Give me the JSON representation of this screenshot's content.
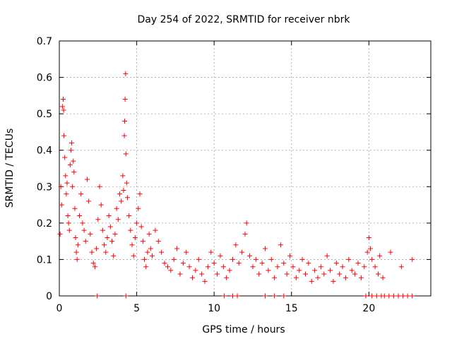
{
  "chart_data": {
    "type": "scatter",
    "title": "Day 254 of 2022, SRMTID for receiver nbrk",
    "xlabel": "GPS time / hours",
    "ylabel": "SRMTID / TECUs",
    "xlim": [
      0,
      24
    ],
    "ylim": [
      0,
      0.7
    ],
    "x_ticks": [
      0,
      5,
      10,
      15,
      20
    ],
    "y_ticks": [
      0,
      0.1,
      0.2,
      0.3,
      0.4,
      0.5,
      0.6,
      0.7
    ],
    "grid": true,
    "marker": "+",
    "color": "#ff0000",
    "series": [
      {
        "name": "SRMTID",
        "points": [
          [
            0.05,
            0.17
          ],
          [
            0.1,
            0.3
          ],
          [
            0.15,
            0.25
          ],
          [
            0.2,
            0.52
          ],
          [
            0.25,
            0.54
          ],
          [
            0.28,
            0.51
          ],
          [
            0.3,
            0.44
          ],
          [
            0.35,
            0.38
          ],
          [
            0.4,
            0.33
          ],
          [
            0.45,
            0.28
          ],
          [
            0.5,
            0.31
          ],
          [
            0.55,
            0.22
          ],
          [
            0.6,
            0.2
          ],
          [
            0.65,
            0.18
          ],
          [
            0.7,
            0.36
          ],
          [
            0.75,
            0.4
          ],
          [
            0.8,
            0.42
          ],
          [
            0.85,
            0.3
          ],
          [
            0.9,
            0.37
          ],
          [
            0.95,
            0.34
          ],
          [
            1.0,
            0.24
          ],
          [
            1.05,
            0.16
          ],
          [
            1.1,
            0.12
          ],
          [
            1.15,
            0.1
          ],
          [
            1.2,
            0.14
          ],
          [
            1.3,
            0.22
          ],
          [
            1.4,
            0.28
          ],
          [
            1.5,
            0.2
          ],
          [
            1.6,
            0.18
          ],
          [
            1.7,
            0.15
          ],
          [
            1.8,
            0.32
          ],
          [
            1.9,
            0.26
          ],
          [
            2.0,
            0.17
          ],
          [
            2.1,
            0.12
          ],
          [
            2.2,
            0.09
          ],
          [
            2.3,
            0.08
          ],
          [
            2.4,
            0.13
          ],
          [
            2.5,
            0.21
          ],
          [
            2.6,
            0.3
          ],
          [
            2.7,
            0.25
          ],
          [
            2.8,
            0.18
          ],
          [
            2.9,
            0.14
          ],
          [
            3.0,
            0.12
          ],
          [
            3.1,
            0.16
          ],
          [
            3.2,
            0.22
          ],
          [
            3.3,
            0.19
          ],
          [
            3.4,
            0.15
          ],
          [
            3.5,
            0.11
          ],
          [
            3.6,
            0.17
          ],
          [
            3.7,
            0.24
          ],
          [
            3.8,
            0.21
          ],
          [
            3.9,
            0.28
          ],
          [
            4.0,
            0.26
          ],
          [
            4.1,
            0.33
          ],
          [
            4.15,
            0.29
          ],
          [
            4.2,
            0.44
          ],
          [
            4.22,
            0.48
          ],
          [
            4.25,
            0.54
          ],
          [
            4.28,
            0.61
          ],
          [
            4.3,
            0.39
          ],
          [
            4.35,
            0.31
          ],
          [
            4.4,
            0.27
          ],
          [
            4.5,
            0.22
          ],
          [
            4.6,
            0.18
          ],
          [
            4.7,
            0.14
          ],
          [
            4.8,
            0.11
          ],
          [
            4.9,
            0.16
          ],
          [
            5.0,
            0.2
          ],
          [
            5.1,
            0.24
          ],
          [
            5.2,
            0.28
          ],
          [
            5.3,
            0.19
          ],
          [
            5.4,
            0.15
          ],
          [
            5.5,
            0.1
          ],
          [
            5.6,
            0.08
          ],
          [
            5.7,
            0.12
          ],
          [
            5.8,
            0.17
          ],
          [
            5.9,
            0.13
          ],
          [
            6.0,
            0.11
          ],
          [
            6.2,
            0.18
          ],
          [
            6.4,
            0.15
          ],
          [
            6.6,
            0.12
          ],
          [
            6.8,
            0.09
          ],
          [
            7.0,
            0.08
          ],
          [
            7.2,
            0.07
          ],
          [
            7.4,
            0.1
          ],
          [
            7.6,
            0.13
          ],
          [
            7.8,
            0.06
          ],
          [
            8.0,
            0.09
          ],
          [
            8.2,
            0.12
          ],
          [
            8.4,
            0.08
          ],
          [
            8.6,
            0.05
          ],
          [
            8.8,
            0.07
          ],
          [
            9.0,
            0.1
          ],
          [
            9.2,
            0.06
          ],
          [
            9.4,
            0.04
          ],
          [
            9.6,
            0.08
          ],
          [
            9.8,
            0.12
          ],
          [
            10.0,
            0.09
          ],
          [
            10.2,
            0.06
          ],
          [
            10.4,
            0.11
          ],
          [
            10.6,
            0.08
          ],
          [
            10.8,
            0.05
          ],
          [
            11.0,
            0.07
          ],
          [
            11.2,
            0.1
          ],
          [
            11.4,
            0.14
          ],
          [
            11.6,
            0.09
          ],
          [
            11.8,
            0.12
          ],
          [
            12.0,
            0.17
          ],
          [
            12.1,
            0.2
          ],
          [
            12.3,
            0.11
          ],
          [
            12.5,
            0.08
          ],
          [
            12.7,
            0.1
          ],
          [
            12.9,
            0.06
          ],
          [
            13.1,
            0.09
          ],
          [
            13.3,
            0.13
          ],
          [
            13.5,
            0.07
          ],
          [
            13.7,
            0.1
          ],
          [
            13.9,
            0.05
          ],
          [
            14.1,
            0.08
          ],
          [
            14.3,
            0.14
          ],
          [
            14.5,
            0.09
          ],
          [
            14.7,
            0.06
          ],
          [
            14.9,
            0.11
          ],
          [
            15.1,
            0.08
          ],
          [
            15.3,
            0.05
          ],
          [
            15.5,
            0.07
          ],
          [
            15.7,
            0.1
          ],
          [
            15.9,
            0.06
          ],
          [
            16.1,
            0.09
          ],
          [
            16.3,
            0.04
          ],
          [
            16.5,
            0.07
          ],
          [
            16.7,
            0.05
          ],
          [
            16.9,
            0.08
          ],
          [
            17.1,
            0.06
          ],
          [
            17.3,
            0.11
          ],
          [
            17.5,
            0.07
          ],
          [
            17.7,
            0.04
          ],
          [
            17.9,
            0.09
          ],
          [
            18.1,
            0.06
          ],
          [
            18.3,
            0.08
          ],
          [
            18.5,
            0.05
          ],
          [
            18.7,
            0.1
          ],
          [
            18.9,
            0.07
          ],
          [
            19.1,
            0.06
          ],
          [
            19.3,
            0.09
          ],
          [
            19.5,
            0.05
          ],
          [
            19.7,
            0.08
          ],
          [
            19.9,
            0.12
          ],
          [
            20.0,
            0.16
          ],
          [
            20.1,
            0.13
          ],
          [
            20.2,
            0.1
          ],
          [
            20.4,
            0.08
          ],
          [
            20.6,
            0.06
          ],
          [
            20.7,
            0.11
          ],
          [
            20.9,
            0.05
          ],
          [
            21.4,
            0.12
          ],
          [
            22.1,
            0.08
          ],
          [
            22.8,
            0.1
          ],
          [
            2.45,
            0
          ],
          [
            4.3,
            0
          ],
          [
            10.65,
            0
          ],
          [
            11.2,
            0
          ],
          [
            11.5,
            0
          ],
          [
            13.3,
            0
          ],
          [
            13.9,
            0
          ],
          [
            14.5,
            0
          ],
          [
            19.8,
            0
          ],
          [
            20.2,
            0
          ],
          [
            20.5,
            0
          ],
          [
            20.8,
            0
          ],
          [
            21.0,
            0
          ],
          [
            21.3,
            0
          ],
          [
            21.6,
            0
          ],
          [
            21.9,
            0
          ],
          [
            22.2,
            0
          ],
          [
            22.5,
            0
          ],
          [
            22.8,
            0
          ]
        ]
      }
    ]
  }
}
